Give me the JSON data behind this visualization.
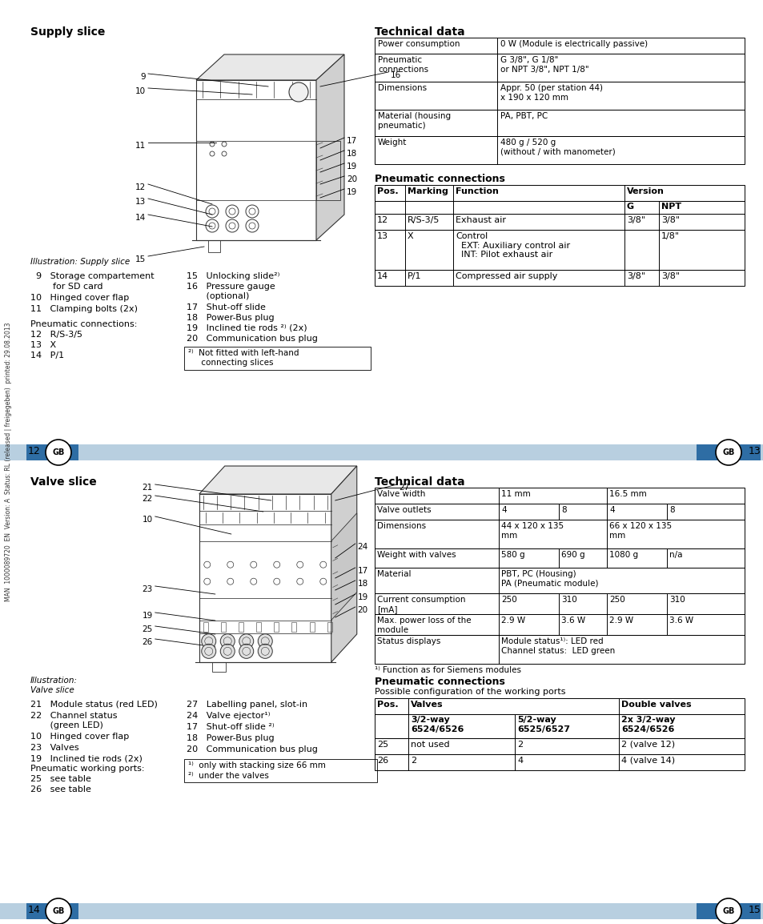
{
  "bg_color": "#ffffff",
  "page_width": 9.54,
  "page_height": 11.54,
  "top_section_title_left": "Supply slice",
  "top_section_title_right": "Technical data",
  "tech_data_top": [
    [
      "Power consumption",
      "0 W (Module is electrically passive)"
    ],
    [
      "Pneumatic\nconnections",
      "G 3/8\", G 1/8\"\nor NPT 3/8\", NPT 1/8\""
    ],
    [
      "Dimensions",
      "Appr. 50 (per station 44)\nx 190 x 120 mm"
    ],
    [
      "Material (housing\npneumatic)",
      "PA, PBT, PC"
    ],
    [
      "Weight",
      "480 g / 520 g\n(without / with manometer)"
    ]
  ],
  "pneumatic_conn_title_top": "Pneumatic connections",
  "pneumatic_table_top_rows": [
    [
      "12",
      "R/S-3/5",
      "Exhaust air",
      "3/8\"",
      "3/8\""
    ],
    [
      "13",
      "X",
      "Control\n  EXT: Auxiliary control air\n  INT: Pilot exhaust air",
      "",
      "1/8\""
    ],
    [
      "14",
      "P/1",
      "Compressed air supply",
      "3/8\"",
      "3/8\""
    ]
  ],
  "illustration_supply": "Illustration: Supply slice",
  "page_nums_top": [
    "12",
    "13"
  ],
  "bottom_section_title_left": "Valve slice",
  "bottom_section_title_right": "Technical data",
  "tech_data_bottom_rows": [
    [
      "Valve width",
      "11 mm",
      "",
      "16.5 mm",
      ""
    ],
    [
      "Valve outlets",
      "4",
      "8",
      "4",
      "8"
    ],
    [
      "Dimensions",
      "44 x 120 x 135\nmm",
      "",
      "66 x 120 x 135\nmm",
      ""
    ],
    [
      "Weight with valves",
      "580 g",
      "690 g",
      "1080 g",
      "n/a"
    ],
    [
      "Material",
      "PBT, PC (Housing)\nPA (Pneumatic module)",
      "",
      "",
      ""
    ],
    [
      "Current consumption\n[mA]",
      "250",
      "310",
      "250",
      "310"
    ],
    [
      "Max. power loss of the\nmodule",
      "2.9 W",
      "3.6 W",
      "2.9 W",
      "3.6 W"
    ],
    [
      "Status displays",
      "Module status¹⁾: LED red\nChannel status:  LED green",
      "",
      "",
      ""
    ]
  ],
  "footnote_bottom_tech": "¹⁾ Function as for Siemens modules",
  "pneumatic_conn_title_bottom": "Pneumatic connections",
  "pneumatic_subtitle_bottom": "Possible configuration of the working ports",
  "pneumatic_table_bottom_rows": [
    [
      "25",
      "not used",
      "2",
      "2 (valve 12)"
    ],
    [
      "26",
      "2",
      "4",
      "4 (valve 14)"
    ]
  ],
  "illustration_valve": "Illustration:\nValve slice",
  "page_nums_bottom": [
    "14",
    "15"
  ],
  "sidebar_text": "MAN  1000089720  EN  Version: A  Status: RL (released | freigegeben)  printed: 29.08.2013",
  "divider_color_light": "#b8cfe0",
  "divider_color_dark": "#2e6da4",
  "gb_circle_color": "#ffffff",
  "gb_circle_border": "#000000"
}
